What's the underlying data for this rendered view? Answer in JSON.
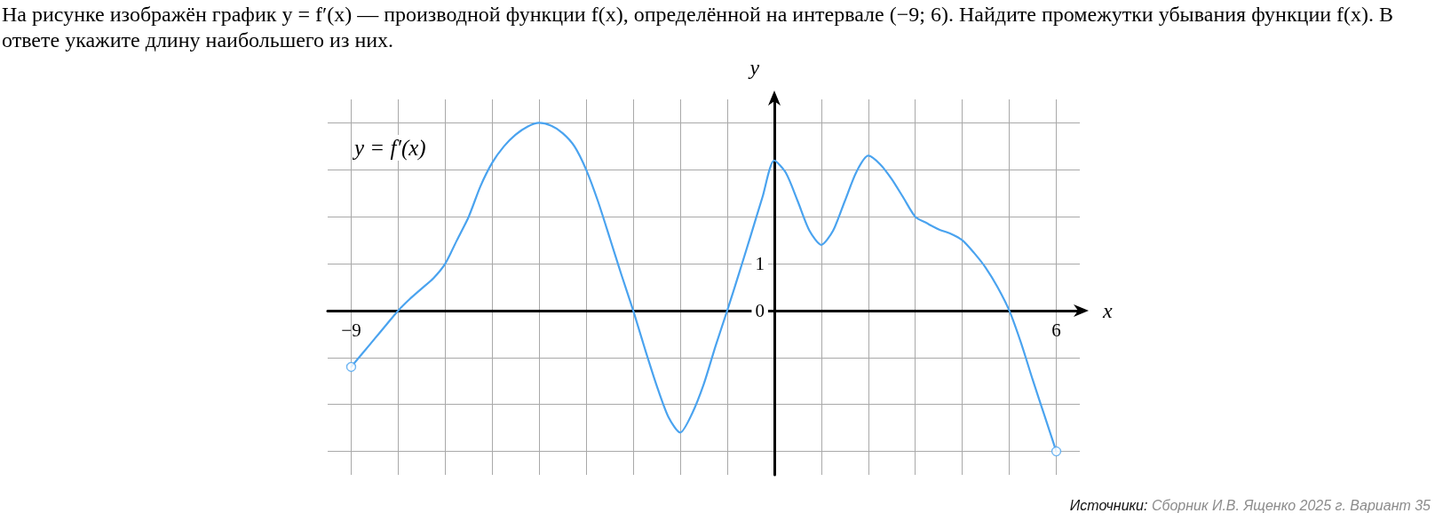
{
  "chart_data": {
    "type": "line",
    "title": "На рисунке изображён график y = f′(x) — производной функции f(x), определённой на интервале (−9; 6). Найдите промежутки убывания функции f(x). В ответе укажите длину наибольшего из них.",
    "xlabel": "x",
    "ylabel": "y",
    "annotations": [
      "y = f′(x)",
      "Источники: Сборник И.В. Ященко 2025 г. Вариант 35"
    ],
    "xlim": [
      -9.5,
      6.5
    ],
    "ylim": [
      -3.5,
      4.5
    ],
    "xticks": [
      {
        "value": -9,
        "label": "−9"
      },
      {
        "value": -8,
        "label": null
      },
      {
        "value": -7,
        "label": null
      },
      {
        "value": -6,
        "label": null
      },
      {
        "value": -5,
        "label": null
      },
      {
        "value": -4,
        "label": null
      },
      {
        "value": -3,
        "label": null
      },
      {
        "value": -2,
        "label": null
      },
      {
        "value": -1,
        "label": null
      },
      {
        "value": 0,
        "label": null
      },
      {
        "value": 1,
        "label": null
      },
      {
        "value": 2,
        "label": null
      },
      {
        "value": 3,
        "label": null
      },
      {
        "value": 4,
        "label": null
      },
      {
        "value": 5,
        "label": null
      },
      6
    ],
    "yticks": [
      {
        "value": -3,
        "label": null
      },
      {
        "value": -2,
        "label": null
      },
      {
        "value": -1,
        "label": null
      },
      0,
      1,
      {
        "value": 2,
        "label": null
      },
      {
        "value": 3,
        "label": null
      },
      {
        "value": 4,
        "label": null
      }
    ],
    "grid": true,
    "series": [
      {
        "type": "line",
        "color": "#4aa3ef",
        "x": [
          -9,
          -8.75,
          -8.5,
          -8.25,
          -8,
          -7.75,
          -7.5,
          -7.25,
          -7,
          -6.75,
          -6.5,
          -6.25,
          -6,
          -5.75,
          -5.5,
          -5.25,
          -5,
          -4.75,
          -4.5,
          -4.25,
          -4,
          -3.75,
          -3.5,
          -3.25,
          -3,
          -2.75,
          -2.5,
          -2.25,
          -2,
          -1.75,
          -1.5,
          -1.25,
          -1,
          -0.75,
          -0.5,
          -0.25,
          0,
          0.25,
          0.5,
          0.75,
          1,
          1.25,
          1.5,
          1.75,
          2,
          2.25,
          2.5,
          2.75,
          3,
          3.25,
          3.5,
          3.75,
          4,
          4.25,
          4.5,
          4.75,
          5,
          5.25,
          5.5,
          5.75,
          6
        ],
        "values": [
          -1.2,
          -0.9,
          -0.6,
          -0.3,
          0,
          0.25,
          0.47,
          0.69,
          1.0,
          1.5,
          2.0,
          2.65,
          3.15,
          3.5,
          3.75,
          3.92,
          4.0,
          3.94,
          3.78,
          3.5,
          3.0,
          2.33,
          1.55,
          0.76,
          0,
          -0.82,
          -1.6,
          -2.27,
          -2.6,
          -2.2,
          -1.57,
          -0.76,
          0,
          0.79,
          1.6,
          2.42,
          3.2,
          2.93,
          2.33,
          1.7,
          1.4,
          1.7,
          2.33,
          2.96,
          3.3,
          3.12,
          2.8,
          2.4,
          2.0,
          1.86,
          1.73,
          1.64,
          1.5,
          1.23,
          0.91,
          0.5,
          0,
          -0.69,
          -1.48,
          -2.24,
          -3.0
        ]
      },
      {
        "type": "scatter",
        "color": "#4aa3ef",
        "marker": "circle",
        "x": [
          -9,
          6
        ],
        "values": [
          -1.2,
          -3.0
        ]
      }
    ]
  }
}
